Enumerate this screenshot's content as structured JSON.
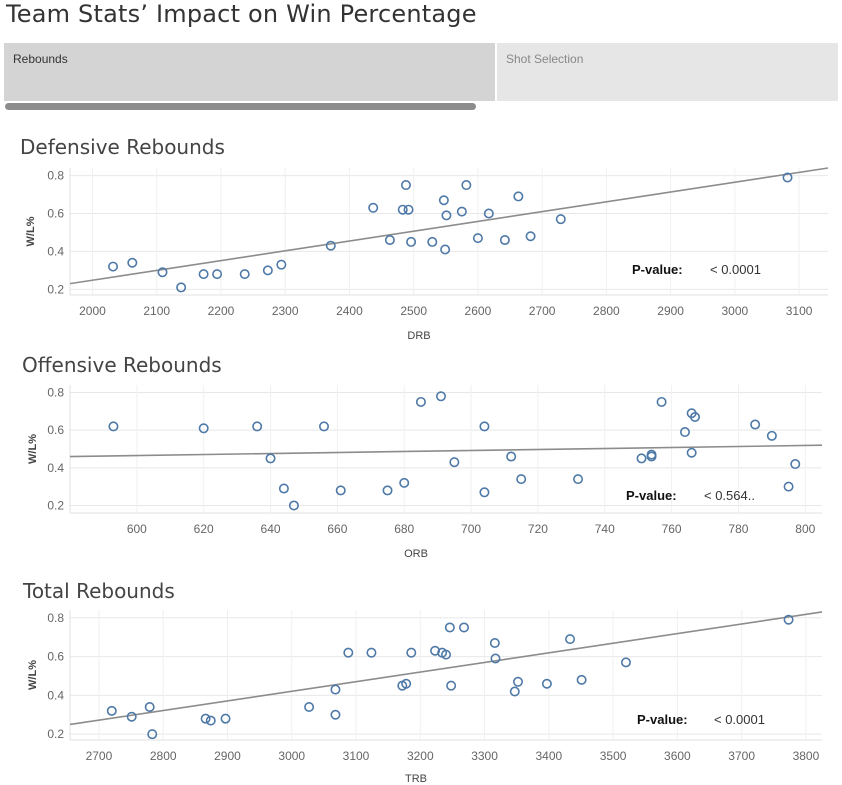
{
  "page": {
    "title": "Team Stats’ Impact on Win Percentage"
  },
  "tabs": [
    {
      "label": "Rebounds",
      "active": true
    },
    {
      "label": "Shot Selection",
      "active": false
    }
  ],
  "colors": {
    "marker": "#4e79a7",
    "trend": "#8c8c8c",
    "tab_active": "#d4d4d4",
    "tab_inactive": "#e6e6e6"
  },
  "chart_data": [
    {
      "type": "scatter",
      "title": "Defensive Rebounds",
      "xlabel": "DRB",
      "ylabel": "W/L%",
      "xlim": [
        1965,
        3145
      ],
      "ylim": [
        0.17,
        0.84
      ],
      "xticks": [
        2000,
        2100,
        2200,
        2300,
        2400,
        2500,
        2600,
        2700,
        2800,
        2900,
        3000,
        3100
      ],
      "yticks": [
        0.2,
        0.4,
        0.6,
        0.8
      ],
      "grid": true,
      "pvalue_label": "P-value:",
      "pvalue": "< 0.0001",
      "trend": [
        [
          1965,
          0.23
        ],
        [
          3145,
          0.84
        ]
      ],
      "points": [
        [
          2032,
          0.32
        ],
        [
          2062,
          0.34
        ],
        [
          2109,
          0.29
        ],
        [
          2138,
          0.21
        ],
        [
          2173,
          0.28
        ],
        [
          2194,
          0.28
        ],
        [
          2237,
          0.28
        ],
        [
          2273,
          0.3
        ],
        [
          2294,
          0.33
        ],
        [
          2371,
          0.43
        ],
        [
          2437,
          0.63
        ],
        [
          2463,
          0.46
        ],
        [
          2483,
          0.62
        ],
        [
          2488,
          0.75
        ],
        [
          2492,
          0.62
        ],
        [
          2496,
          0.45
        ],
        [
          2529,
          0.45
        ],
        [
          2547,
          0.67
        ],
        [
          2551,
          0.59
        ],
        [
          2549,
          0.41
        ],
        [
          2575,
          0.61
        ],
        [
          2582,
          0.75
        ],
        [
          2600,
          0.47
        ],
        [
          2617,
          0.6
        ],
        [
          2642,
          0.46
        ],
        [
          2663,
          0.69
        ],
        [
          2682,
          0.48
        ],
        [
          2729,
          0.57
        ],
        [
          3082,
          0.79
        ]
      ]
    },
    {
      "type": "scatter",
      "title": "Offensive Rebounds",
      "xlabel": "ORB",
      "ylabel": "W/L%",
      "xlim": [
        580,
        805
      ],
      "ylim": [
        0.16,
        0.84
      ],
      "xticks": [
        600,
        620,
        640,
        660,
        680,
        700,
        720,
        740,
        760,
        780,
        800
      ],
      "yticks": [
        0.2,
        0.4,
        0.6,
        0.8
      ],
      "grid": true,
      "pvalue_label": "P-value:",
      "pvalue": "< 0.564..",
      "trend": [
        [
          580,
          0.46
        ],
        [
          805,
          0.52
        ]
      ],
      "points": [
        [
          593,
          0.62
        ],
        [
          620,
          0.61
        ],
        [
          636,
          0.62
        ],
        [
          640,
          0.45
        ],
        [
          644,
          0.29
        ],
        [
          647,
          0.2
        ],
        [
          656,
          0.62
        ],
        [
          661,
          0.28
        ],
        [
          675,
          0.28
        ],
        [
          680,
          0.32
        ],
        [
          685,
          0.75
        ],
        [
          691,
          0.78
        ],
        [
          695,
          0.43
        ],
        [
          704,
          0.62
        ],
        [
          704,
          0.27
        ],
        [
          712,
          0.46
        ],
        [
          715,
          0.34
        ],
        [
          732,
          0.34
        ],
        [
          751,
          0.45
        ],
        [
          754,
          0.46
        ],
        [
          754,
          0.47
        ],
        [
          757,
          0.75
        ],
        [
          764,
          0.59
        ],
        [
          766,
          0.48
        ],
        [
          766,
          0.69
        ],
        [
          767,
          0.67
        ],
        [
          785,
          0.63
        ],
        [
          790,
          0.57
        ],
        [
          795,
          0.3
        ],
        [
          797,
          0.42
        ]
      ]
    },
    {
      "type": "scatter",
      "title": "Total Rebounds",
      "xlabel": "TRB",
      "ylabel": "W/L%",
      "xlim": [
        2655,
        3825
      ],
      "ylim": [
        0.17,
        0.84
      ],
      "xticks": [
        2700,
        2800,
        2900,
        3000,
        3100,
        3200,
        3300,
        3400,
        3500,
        3600,
        3700,
        3800
      ],
      "yticks": [
        0.2,
        0.4,
        0.6,
        0.8
      ],
      "grid": true,
      "pvalue_label": "P-value:",
      "pvalue": "< 0.0001",
      "trend": [
        [
          2655,
          0.25
        ],
        [
          3825,
          0.83
        ]
      ],
      "points": [
        [
          2720,
          0.32
        ],
        [
          2751,
          0.29
        ],
        [
          2779,
          0.34
        ],
        [
          2783,
          0.2
        ],
        [
          2866,
          0.28
        ],
        [
          2874,
          0.27
        ],
        [
          2897,
          0.28
        ],
        [
          3027,
          0.34
        ],
        [
          3068,
          0.43
        ],
        [
          3068,
          0.3
        ],
        [
          3088,
          0.62
        ],
        [
          3124,
          0.62
        ],
        [
          3172,
          0.45
        ],
        [
          3178,
          0.46
        ],
        [
          3186,
          0.62
        ],
        [
          3223,
          0.63
        ],
        [
          3234,
          0.62
        ],
        [
          3240,
          0.61
        ],
        [
          3246,
          0.75
        ],
        [
          3248,
          0.45
        ],
        [
          3268,
          0.75
        ],
        [
          3316,
          0.67
        ],
        [
          3317,
          0.59
        ],
        [
          3347,
          0.42
        ],
        [
          3352,
          0.47
        ],
        [
          3397,
          0.46
        ],
        [
          3433,
          0.69
        ],
        [
          3451,
          0.48
        ],
        [
          3520,
          0.57
        ],
        [
          3773,
          0.79
        ]
      ]
    }
  ]
}
